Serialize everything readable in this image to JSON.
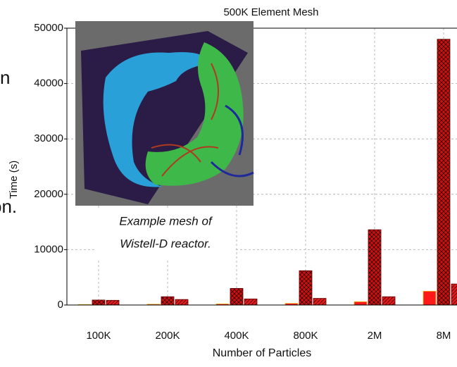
{
  "chart_data": {
    "type": "bar",
    "title": "500K Element Mesh",
    "x_label": "Number of Particles",
    "y_label": "Time (s)",
    "categories": [
      "100K",
      "200K",
      "400K",
      "800K",
      "2M",
      "8M"
    ],
    "series": [
      {
        "color": "#ff1a1a",
        "values": [
          100,
          150,
          200,
          300,
          600,
          2500
        ]
      },
      {
        "color": "#cc1111",
        "values": [
          900,
          1500,
          3000,
          6200,
          13600,
          48000
        ]
      },
      {
        "color": "#e01a1a",
        "values": [
          850,
          1000,
          1100,
          1200,
          1500,
          3800
        ]
      }
    ],
    "ylim": [
      0,
      50000
    ],
    "yticks": [
      0,
      10000,
      20000,
      30000,
      40000,
      50000
    ],
    "grid": true
  },
  "inset": {
    "caption": [
      "Example mesh of",
      "Wistell-D reactor."
    ]
  },
  "cropped_text": [
    "n",
    "on."
  ]
}
